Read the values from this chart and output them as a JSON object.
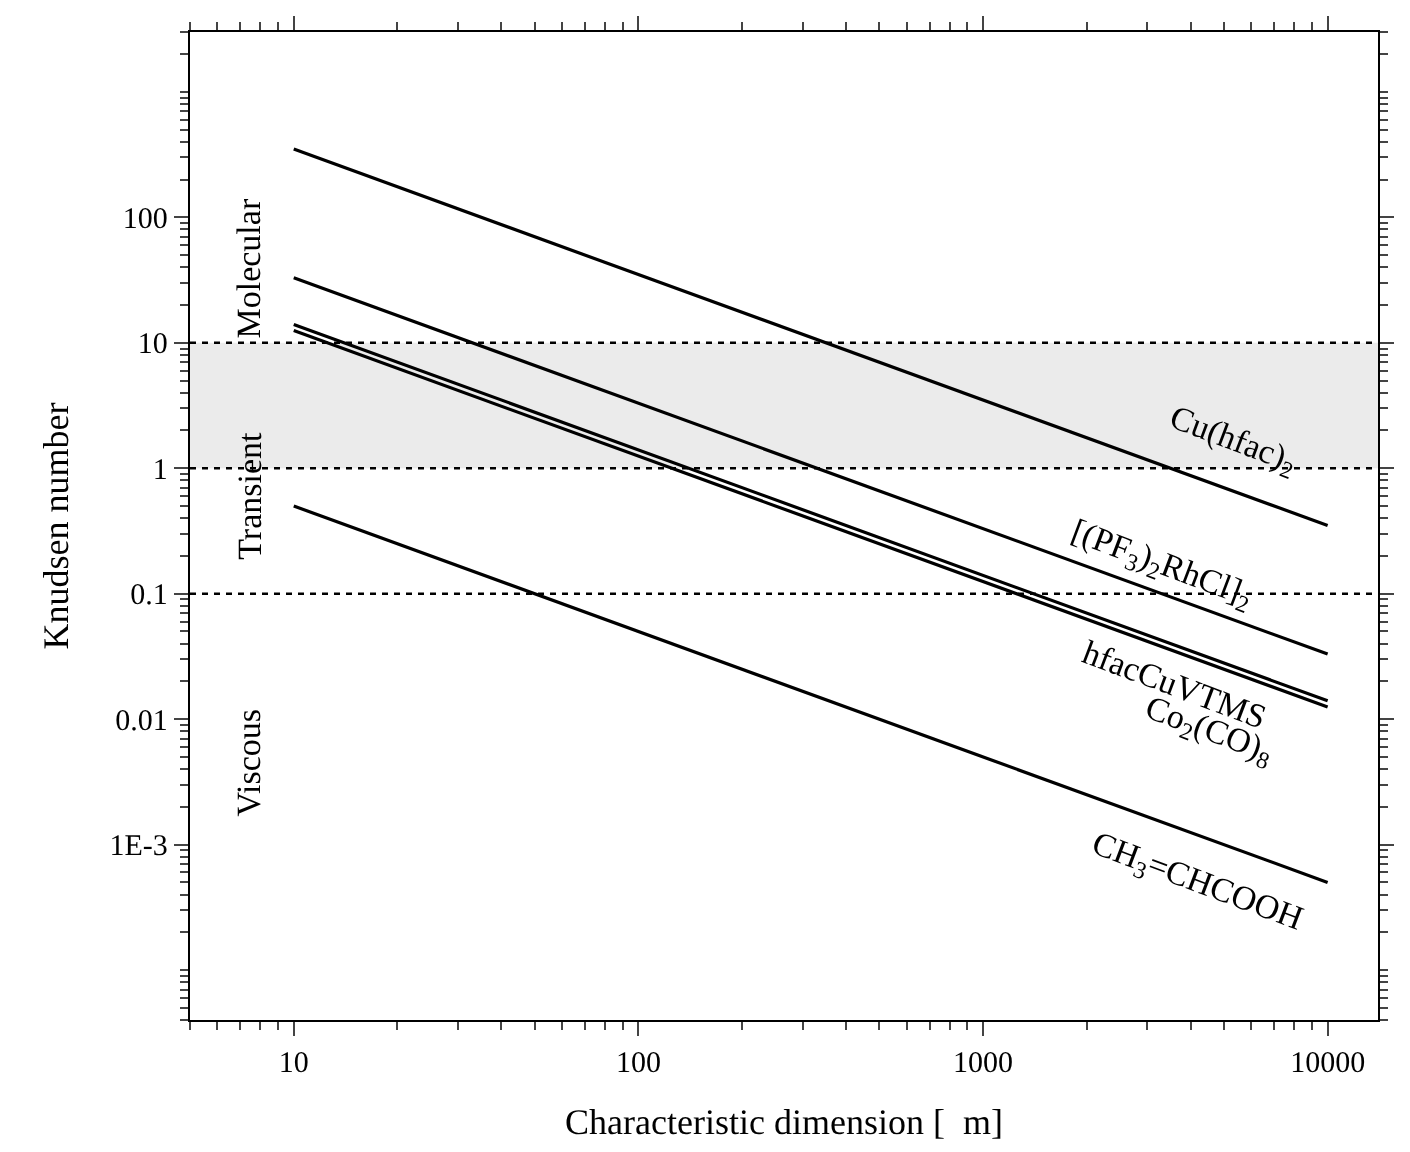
{
  "chart_data": {
    "type": "line",
    "xlabel": "Characteristic dimension [  m]",
    "ylabel": "Knudsen number",
    "log": "xy",
    "grid": false,
    "marker": "none",
    "line_style": "solid",
    "xlim": [
      5,
      14000
    ],
    "xticks": [
      10,
      100,
      1000,
      10000
    ],
    "ylim": [
      4e-05,
      3000
    ],
    "yticks": [
      {
        "value": 0.001,
        "label": "1E-3"
      },
      0.01,
      0.1,
      1,
      10,
      100
    ],
    "x": [
      10,
      10000
    ],
    "series": [
      {
        "name": "Cu(hfac)$_{2}$",
        "color": "#000000",
        "values": [
          350,
          0.35
        ]
      },
      {
        "name": "[(PF$_{3}$)$_{2}$RhCl]$_{2}$",
        "color": "#000000",
        "values": [
          33,
          0.033
        ]
      },
      {
        "name": "hfacCuVTMS",
        "color": "#000000",
        "values": [
          14,
          0.014
        ]
      },
      {
        "name": "Co$_{2}$(CO)$_{8}$",
        "color": "#000000",
        "values": [
          12.5,
          0.0125
        ]
      },
      {
        "name": "CH$_{3}$=CHCOOH",
        "color": "#000000",
        "values": [
          0.5,
          0.0005
        ]
      }
    ],
    "bands": [
      {
        "axis": "y",
        "from": 1,
        "to": 10,
        "color": "#ebebeb"
      }
    ],
    "ref_lines": [
      {
        "axis": "y",
        "value": 10,
        "line_style": "dotted",
        "color": "#000000"
      },
      {
        "axis": "y",
        "value": 1,
        "line_style": "dotted",
        "color": "#000000"
      },
      {
        "axis": "y",
        "value": 0.1,
        "line_style": "dotted",
        "color": "#000000"
      }
    ],
    "annotations": [
      "Molecular",
      "Transient",
      "Viscous"
    ]
  }
}
